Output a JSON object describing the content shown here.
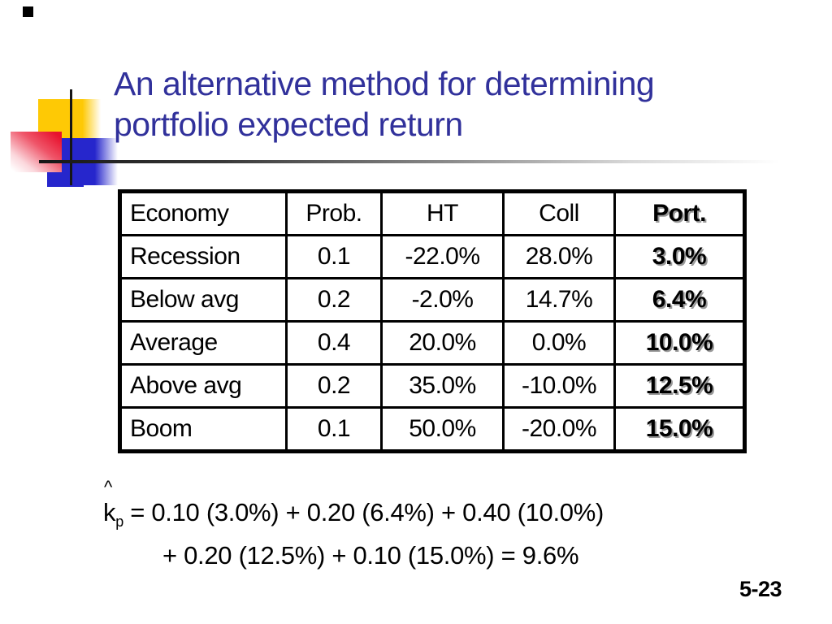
{
  "slide": {
    "title_line1": "An alternative method for determining",
    "title_line2": "portfolio expected return",
    "page_number": "5-23"
  },
  "table": {
    "columns": [
      "Economy",
      "Prob.",
      "HT",
      "Coll",
      "Port."
    ],
    "rows": [
      [
        "Recession",
        "0.1",
        "-22.0%",
        "28.0%",
        "3.0%"
      ],
      [
        "Below avg",
        "0.2",
        "-2.0%",
        "14.7%",
        "6.4%"
      ],
      [
        "Average",
        "0.4",
        "20.0%",
        "0.0%",
        "10.0%"
      ],
      [
        "Above avg",
        "0.2",
        "35.0%",
        "-10.0%",
        "12.5%"
      ],
      [
        "Boom",
        "0.1",
        "50.0%",
        "-20.0%",
        "15.0%"
      ]
    ]
  },
  "formula": {
    "hat": "^",
    "symbol": "k",
    "subscript": "p",
    "line1_rest": "= 0.10 (3.0%) + 0.20 (6.4%) + 0.40 (10.0%)",
    "line2": "+ 0.20 (12.5%) + 0.10 (15.0%) = 9.6%"
  },
  "colors": {
    "title-text": "#31319B",
    "accent-yellow": "#FEC905",
    "accent-red": "#E8112D",
    "accent-blue": "#2626CC",
    "shadow-gray": "#999999"
  }
}
